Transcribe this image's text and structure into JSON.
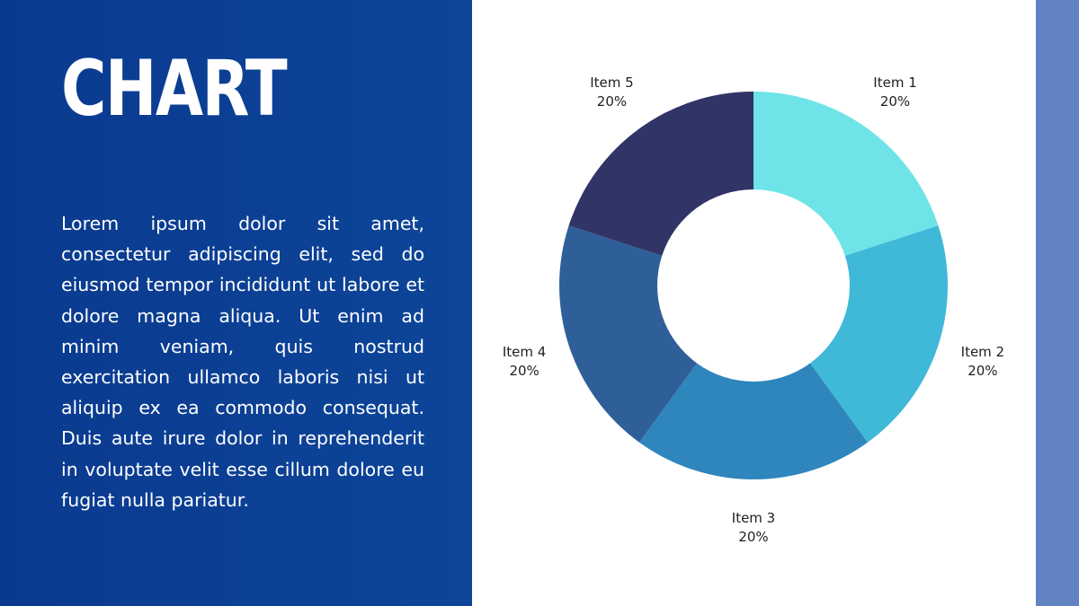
{
  "slide": {
    "title": "CHART",
    "body": "Lorem ipsum dolor sit amet, consectetur adipiscing elit, sed do eiusmod tempor incididunt ut labore et dolore magna aliqua. Ut enim ad minim veniam, quis nostrud exercitation ullamco laboris nisi ut aliquip ex ea commodo consequat. Duis aute irure dolor in reprehenderit in voluptate velit esse cillum dolore eu fugiat nulla pariatur."
  },
  "colors": {
    "panel": "#0b3f94",
    "strip": "#6283c3"
  },
  "chart_data": {
    "type": "pie",
    "donut": true,
    "categories": [
      "Item 1",
      "Item 2",
      "Item 3",
      "Item 4",
      "Item 5"
    ],
    "values": [
      20,
      20,
      20,
      20,
      20
    ],
    "labels": [
      "20%",
      "20%",
      "20%",
      "20%",
      "20%"
    ],
    "colors": [
      "#6ee4e8",
      "#40b8d8",
      "#2e86bc",
      "#2f5f99",
      "#303466"
    ],
    "title": "",
    "legend": "none"
  }
}
